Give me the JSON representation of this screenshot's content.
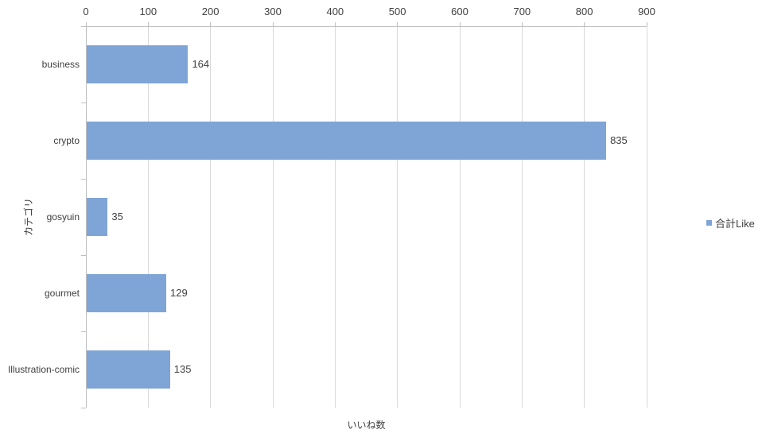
{
  "chart_data": {
    "type": "bar",
    "orientation": "horizontal",
    "title": "",
    "categories": [
      "business",
      "crypto",
      "gosyuin",
      "gourmet",
      "Illustration-comic"
    ],
    "series": [
      {
        "name": "合計Like",
        "values": [
          164,
          835,
          35,
          129,
          135
        ]
      }
    ],
    "data_labels": true,
    "xlabel": "いいね数",
    "ylabel": "カテゴリ",
    "xlim": [
      0,
      900
    ],
    "xticks": [
      0,
      100,
      200,
      300,
      400,
      500,
      600,
      700,
      800,
      900
    ],
    "grid": true,
    "legend": {
      "position": "right",
      "items": [
        {
          "label": "合計Like",
          "color": "#7FA5D6"
        }
      ]
    },
    "colors": {
      "bar": "#7FA5D6",
      "gridline": "#D9D9D9",
      "axis_line": "#BFBFBF",
      "text": "#404040"
    }
  }
}
